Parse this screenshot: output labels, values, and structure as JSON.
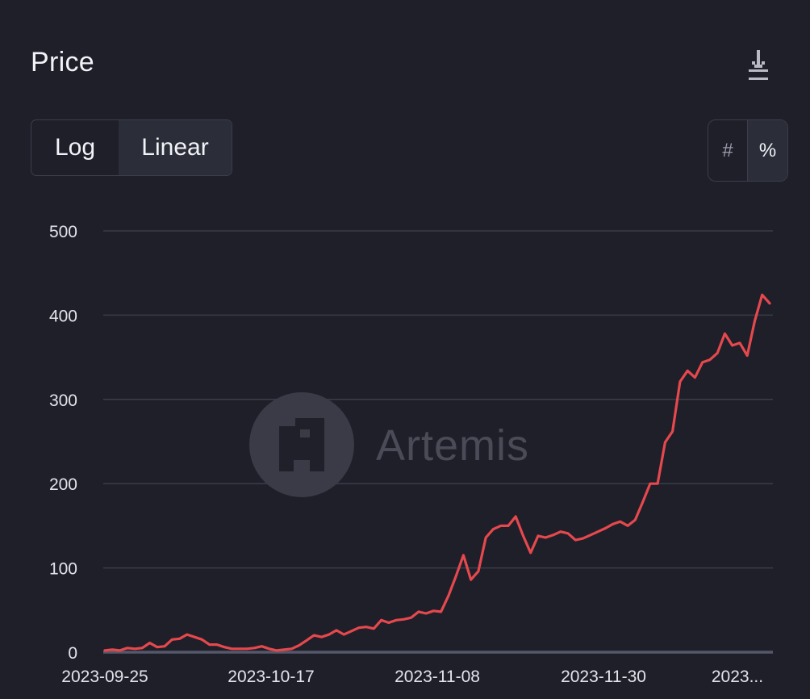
{
  "header": {
    "title": "Price",
    "download_icon": "download-icon"
  },
  "scale_toggle": {
    "options": [
      {
        "label": "Log",
        "selected": false
      },
      {
        "label": "Linear",
        "selected": true
      }
    ]
  },
  "unit_toggle": {
    "options": [
      {
        "label": "#",
        "selected": false
      },
      {
        "label": "%",
        "selected": true
      }
    ]
  },
  "watermark": {
    "text": "Artemis",
    "icon": "artemis-logo-icon"
  },
  "colors": {
    "background": "#1e1f29",
    "line": "#e5484d",
    "grid": "#3a3c48",
    "baseline": "#55586a"
  },
  "chart_data": {
    "type": "line",
    "title": "Price",
    "xlabel": "",
    "ylabel": "",
    "ylim": [
      0,
      500
    ],
    "yticks": [
      0,
      100,
      200,
      300,
      400,
      500
    ],
    "xtick_labels": [
      "2023-09-25",
      "2023-10-17",
      "2023-11-08",
      "2023-11-30",
      "2023..."
    ],
    "grid": true,
    "x_start": "2023-09-25",
    "series": [
      {
        "name": "",
        "values": [
          2,
          3,
          2,
          5,
          4,
          5,
          11,
          6,
          7,
          15,
          16,
          21,
          18,
          15,
          9,
          9,
          6,
          4,
          4,
          4,
          5,
          7,
          4,
          2,
          3,
          4,
          8,
          14,
          20,
          18,
          21,
          26,
          21,
          25,
          29,
          30,
          28,
          38,
          35,
          38,
          39,
          41,
          48,
          46,
          49,
          48,
          67,
          90,
          115,
          86,
          96,
          136,
          146,
          150,
          150,
          161,
          138,
          118,
          138,
          136,
          139,
          143,
          141,
          133,
          135,
          139,
          143,
          147,
          152,
          155,
          150,
          157,
          178,
          200,
          200,
          249,
          262,
          321,
          334,
          326,
          344,
          347,
          355,
          378,
          364,
          367,
          352,
          393,
          424,
          414
        ]
      }
    ]
  }
}
